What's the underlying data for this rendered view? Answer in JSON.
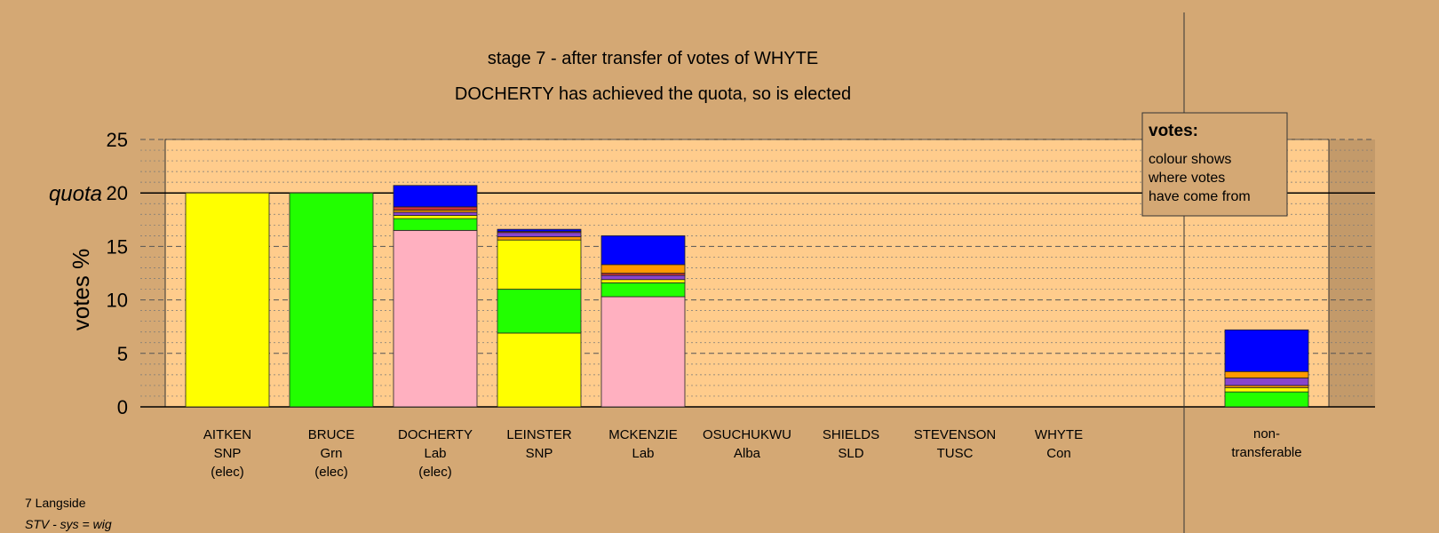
{
  "chart_data": {
    "type": "bar",
    "stacked": true,
    "title": "stage 7 - after transfer of votes of WHYTE",
    "subtitle": "DOCHERTY has achieved the quota, so is elected",
    "ylabel": "votes %",
    "ylim": [
      0,
      25
    ],
    "yticks": [
      0,
      5,
      10,
      15,
      20,
      25
    ],
    "quota": 20,
    "quota_label": "quota",
    "grid": true,
    "categories": [
      [
        "AITKEN",
        "SNP",
        "(elec)"
      ],
      [
        "BRUCE",
        "Grn",
        "(elec)"
      ],
      [
        "DOCHERTY",
        "Lab",
        "(elec)"
      ],
      [
        "LEINSTER",
        "SNP"
      ],
      [
        "MCKENZIE",
        "Lab"
      ],
      [
        "OSUCHUKWU",
        "Alba"
      ],
      [
        "SHIELDS",
        "SLD"
      ],
      [
        "STEVENSON",
        "TUSC"
      ],
      [
        "WHYTE",
        "Con"
      ]
    ],
    "nontransferable_label": [
      "non-",
      "transferable"
    ],
    "colors": {
      "SNP": "#ffff00",
      "Grn": "#22ff00",
      "Lab": "#ffb0c0",
      "Alba": "#ff9900",
      "SLD": "#ff9900",
      "TUSC": "#cc3333",
      "Con": "#0000ff",
      "purple": "#8844cc",
      "background": "#d4a874",
      "plot": "#ffcc8c"
    },
    "stacks": [
      [
        {
          "color": "#ffff00",
          "value": 20.0
        }
      ],
      [
        {
          "color": "#22ff00",
          "value": 20.0
        }
      ],
      [
        {
          "color": "#ffb0c0",
          "value": 16.5
        },
        {
          "color": "#22ff00",
          "value": 1.1
        },
        {
          "color": "#ffff00",
          "value": 0.3
        },
        {
          "color": "#8844cc",
          "value": 0.3
        },
        {
          "color": "#ff9900",
          "value": 0.2
        },
        {
          "color": "#cc3333",
          "value": 0.3
        },
        {
          "color": "#0000ff",
          "value": 2.0
        }
      ],
      [
        {
          "color": "#ffff00",
          "value": 6.9
        },
        {
          "color": "#22ff00",
          "value": 4.1
        },
        {
          "color": "#ffff00",
          "value": 4.6
        },
        {
          "color": "#ff9900",
          "value": 0.3
        },
        {
          "color": "#8844cc",
          "value": 0.4
        },
        {
          "color": "#cc3333",
          "value": 0.1
        },
        {
          "color": "#0000ff",
          "value": 0.2
        }
      ],
      [
        {
          "color": "#ffb0c0",
          "value": 10.3
        },
        {
          "color": "#22ff00",
          "value": 1.3
        },
        {
          "color": "#ffff00",
          "value": 0.3
        },
        {
          "color": "#8844cc",
          "value": 0.4
        },
        {
          "color": "#cc3333",
          "value": 0.2
        },
        {
          "color": "#ff9900",
          "value": 0.8
        },
        {
          "color": "#0000ff",
          "value": 2.7
        }
      ],
      [],
      [],
      [],
      []
    ],
    "nontransferable": [
      {
        "color": "#22ff00",
        "value": 1.4
      },
      {
        "color": "#ffff00",
        "value": 0.4
      },
      {
        "color": "#ff9900",
        "value": 0.2
      },
      {
        "color": "#8844cc",
        "value": 0.7
      },
      {
        "color": "#ff9900",
        "value": 0.6
      },
      {
        "color": "#0000ff",
        "value": 3.9
      }
    ]
  },
  "legend": {
    "title": "votes:",
    "lines": [
      "colour shows",
      "where votes",
      "have come from"
    ]
  },
  "footer": {
    "ward": "7 Langside",
    "system": "STV - sys = wig"
  }
}
